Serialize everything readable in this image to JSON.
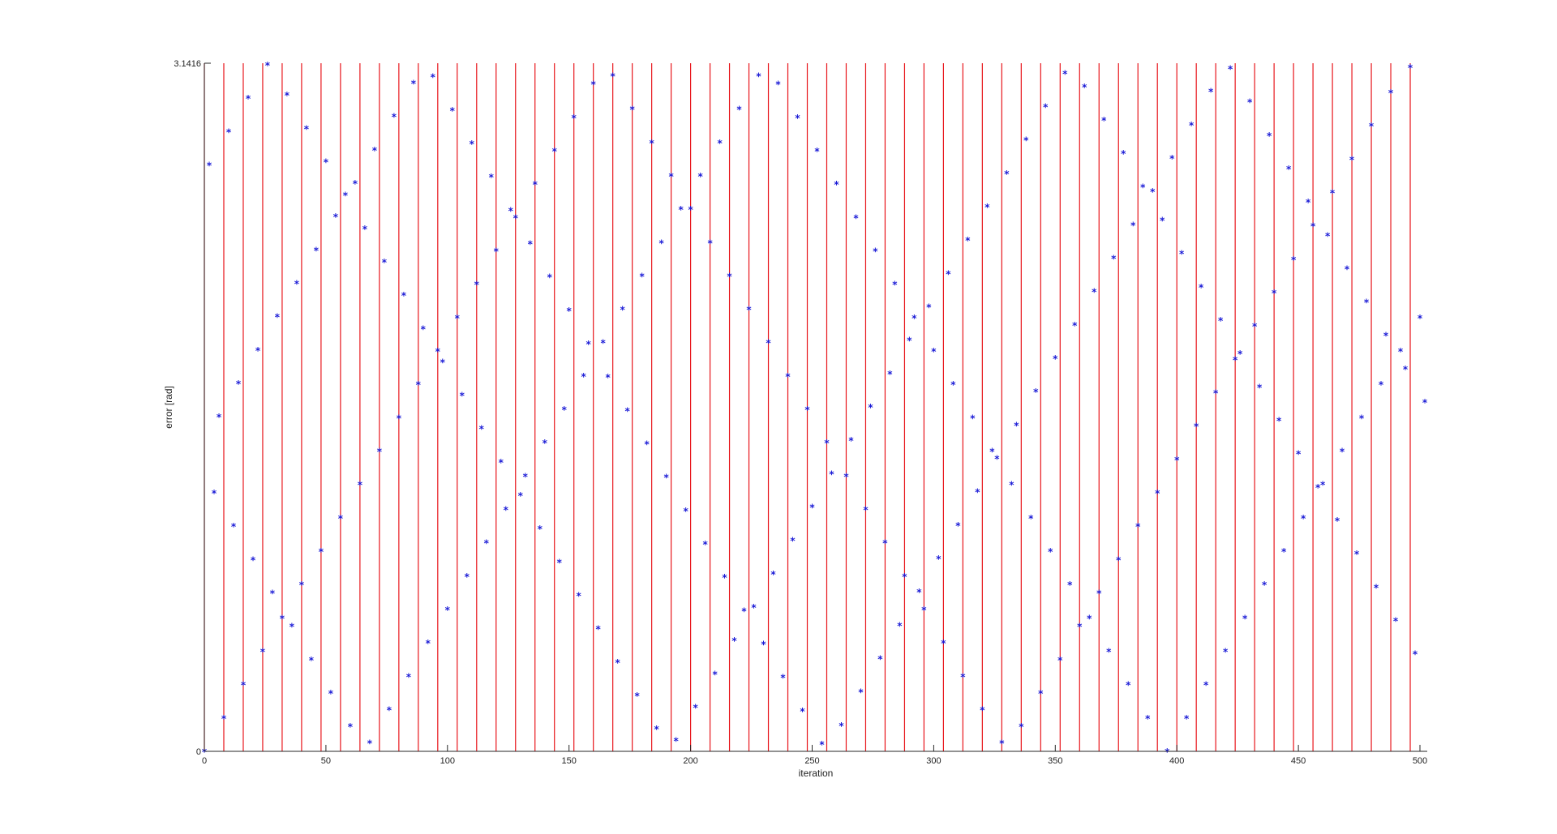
{
  "chart_data": {
    "type": "scatter",
    "title": "",
    "xlabel": "iteration",
    "ylabel": "error [rad]",
    "xlim": [
      0,
      503
    ],
    "ylim": [
      0,
      3.1416
    ],
    "xticks": [
      0,
      50,
      100,
      150,
      200,
      250,
      300,
      350,
      400,
      450,
      500
    ],
    "yticks": [
      0,
      3.1416
    ],
    "ytick_labels": [
      "0",
      "3.1416"
    ],
    "marker": "*",
    "marker_color": "#1a1ad6",
    "vline_color": "#e8151b",
    "vline_interval": 8,
    "vline_start": 0,
    "vline_end": 496,
    "grid": false,
    "legend": "none",
    "series_phases": [
      0.0,
      0.84,
      1.6,
      2.45
    ],
    "series_period": 330,
    "n_points": 503,
    "point_step": 2
  }
}
